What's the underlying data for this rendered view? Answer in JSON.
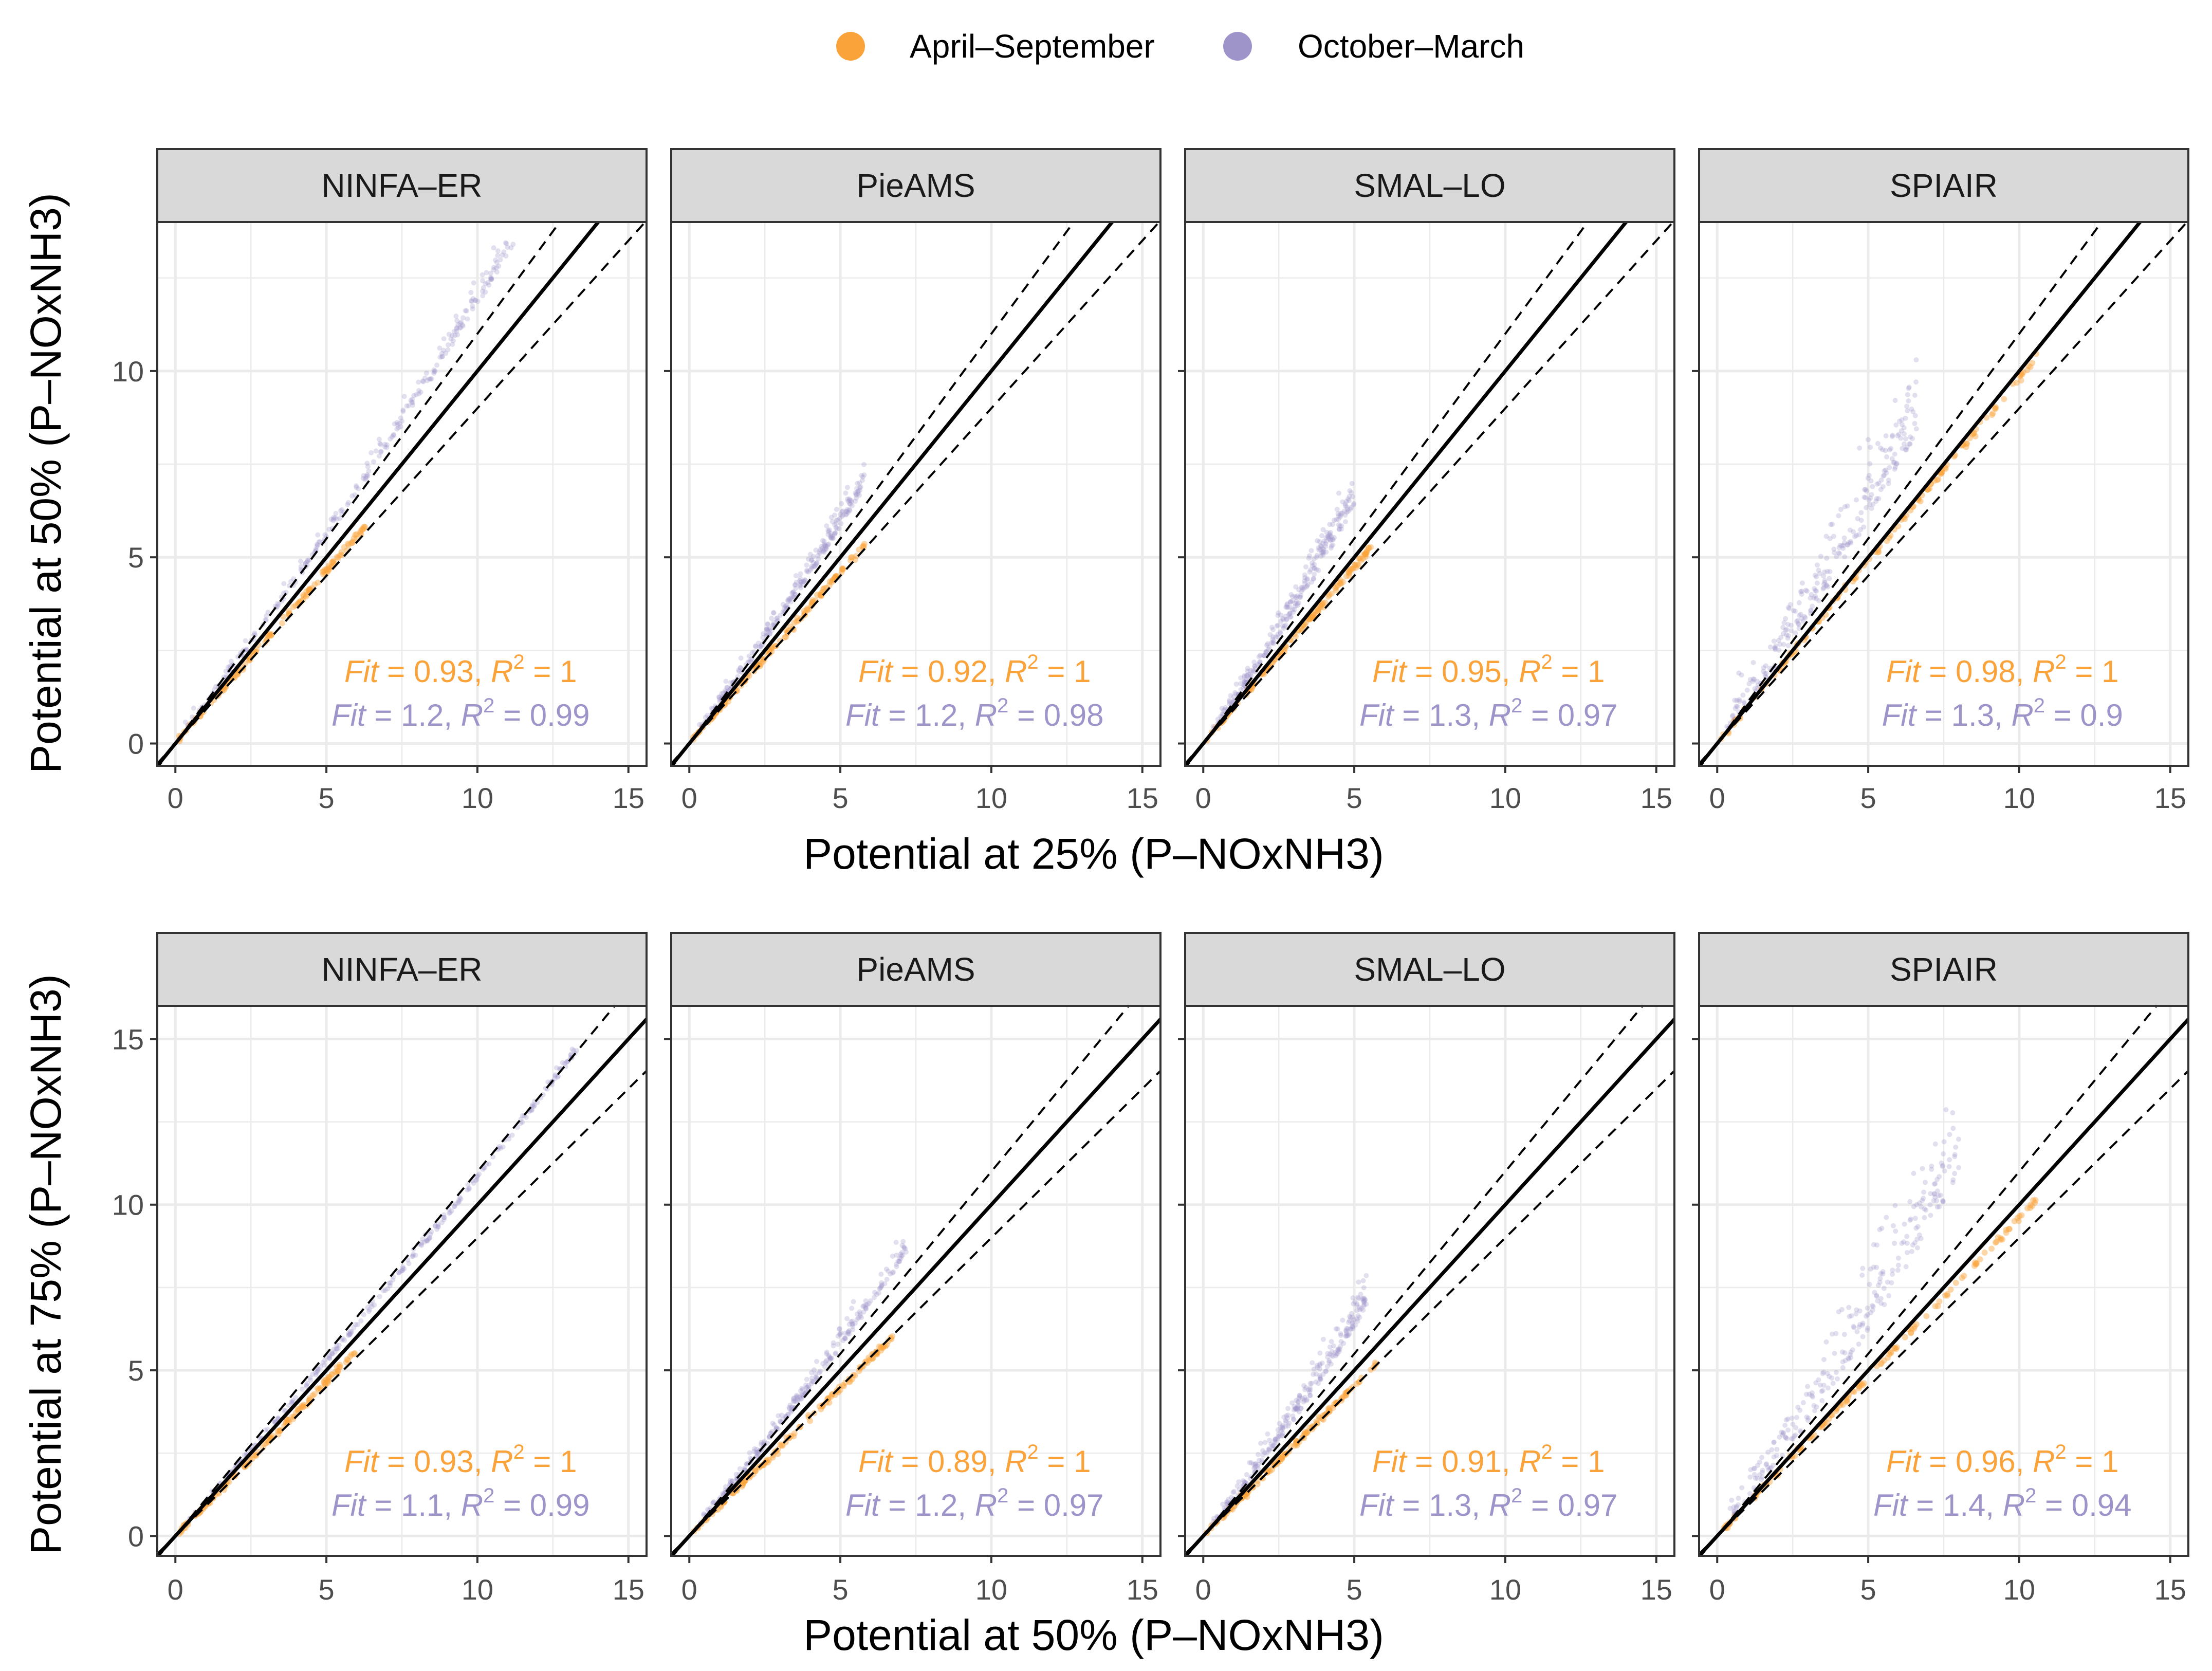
{
  "colors": {
    "summer": "#FBA33B",
    "winter": "#9F94CA",
    "grid": "#EBEBEB",
    "strip": "#D9D9D9",
    "panel_border": "#333333"
  },
  "legend": {
    "items": [
      {
        "label": "April–September",
        "color": "#FBA33B"
      },
      {
        "label": "October–March",
        "color": "#9F94CA"
      }
    ]
  },
  "chart_data": [
    {
      "type": "scatter",
      "row": "top",
      "xlabel": "Potential at 25% (P–NOxNH3)",
      "ylabel": "Potential at 50% (P–NOxNH3)",
      "xlim": [
        -0.6,
        15.6
      ],
      "ylim": [
        -0.6,
        14.0
      ],
      "xticks": [
        0,
        5,
        10,
        15
      ],
      "yticks": [
        0,
        5,
        10
      ],
      "reference_lines": {
        "identity_slope": 1,
        "dashed_slopes": [
          1.1,
          0.9
        ]
      },
      "panels": [
        {
          "strip": "NINFA–ER",
          "summer": {
            "fit": "0.93",
            "r2": "1",
            "x_max": 6.3,
            "slope": 0.93
          },
          "winter": {
            "fit": "1.2",
            "r2": "0.99",
            "x_max": 11.2,
            "slope": 1.2
          }
        },
        {
          "strip": "PieAMS",
          "summer": {
            "fit": "0.92",
            "r2": "1",
            "x_max": 5.8,
            "slope": 0.92
          },
          "winter": {
            "fit": "1.2",
            "r2": "0.98",
            "x_max": 5.8,
            "slope": 1.2
          }
        },
        {
          "strip": "SMAL–LO",
          "summer": {
            "fit": "0.95",
            "r2": "1",
            "x_max": 5.6,
            "slope": 0.95
          },
          "winter": {
            "fit": "1.3",
            "r2": "0.97",
            "x_max": 5.0,
            "slope": 1.3
          }
        },
        {
          "strip": "SPIAIR",
          "summer": {
            "fit": "0.98",
            "r2": "1",
            "x_max": 10.6,
            "slope": 0.98
          },
          "winter": {
            "fit": "1.3",
            "r2": "0.9",
            "x_max": 6.6,
            "slope": 1.3
          }
        }
      ]
    },
    {
      "type": "scatter",
      "row": "bottom",
      "xlabel": "Potential at 50% (P–NOxNH3)",
      "ylabel": "Potential at 75% (P–NOxNH3)",
      "xlim": [
        -0.6,
        15.6
      ],
      "ylim": [
        -0.6,
        16.0
      ],
      "xticks": [
        0,
        5,
        10,
        15
      ],
      "yticks": [
        0,
        5,
        10,
        15
      ],
      "reference_lines": {
        "identity_slope": 1,
        "dashed_slopes": [
          1.1,
          0.9
        ]
      },
      "panels": [
        {
          "strip": "NINFA–ER",
          "summer": {
            "fit": "0.93",
            "r2": "1",
            "x_max": 6.0,
            "slope": 0.93
          },
          "winter": {
            "fit": "1.1",
            "r2": "0.99",
            "x_max": 13.3,
            "slope": 1.1
          }
        },
        {
          "strip": "PieAMS",
          "summer": {
            "fit": "0.89",
            "r2": "1",
            "x_max": 6.8,
            "slope": 0.89
          },
          "winter": {
            "fit": "1.2",
            "r2": "0.97",
            "x_max": 7.2,
            "slope": 1.2
          }
        },
        {
          "strip": "SMAL–LO",
          "summer": {
            "fit": "0.91",
            "r2": "1",
            "x_max": 5.8,
            "slope": 0.91
          },
          "winter": {
            "fit": "1.3",
            "r2": "0.97",
            "x_max": 5.4,
            "slope": 1.3
          }
        },
        {
          "strip": "SPIAIR",
          "summer": {
            "fit": "0.96",
            "r2": "1",
            "x_max": 10.6,
            "slope": 0.96
          },
          "winter": {
            "fit": "1.4",
            "r2": "0.94",
            "x_max": 8.0,
            "slope": 1.4
          }
        }
      ]
    }
  ]
}
